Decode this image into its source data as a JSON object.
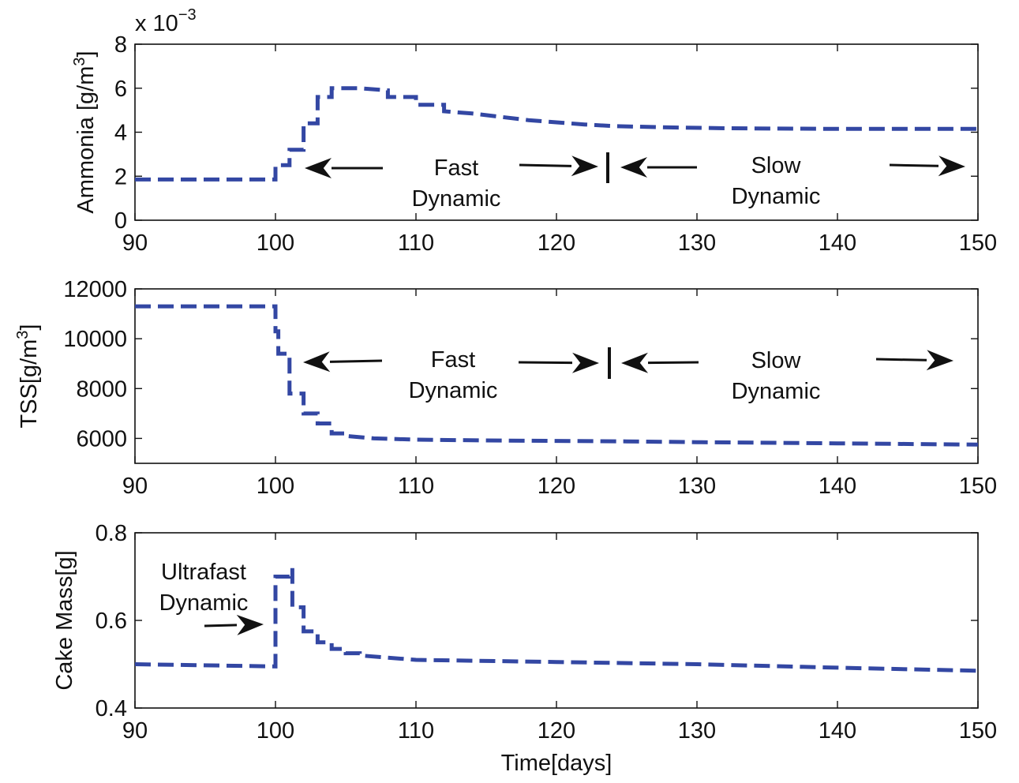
{
  "colors": {
    "series": "#3347a3",
    "axes": "#111111",
    "annotation": "#111111"
  },
  "chart_data": [
    {
      "type": "line",
      "title": "",
      "xlabel": "",
      "ylabel": "Ammonia [g/m^3]",
      "ylabel_parts": {
        "base": "Ammonia [g/m",
        "sup": "3",
        "close": "]"
      },
      "exponent_label": {
        "base": "x 10",
        "sup": "−3"
      },
      "xlim": [
        90,
        150
      ],
      "ylim": [
        0,
        8
      ],
      "xticks": [
        90,
        100,
        110,
        120,
        130,
        140,
        150
      ],
      "yticks": [
        0,
        2,
        4,
        6,
        8
      ],
      "series": [
        {
          "style": "dashed",
          "x": [
            90,
            100,
            100,
            101,
            101,
            102,
            102,
            103,
            103,
            104,
            104,
            106,
            108,
            108,
            110,
            110,
            112,
            112,
            114,
            116,
            118,
            120,
            122,
            124,
            128,
            132,
            140,
            150
          ],
          "y": [
            1.85,
            1.85,
            2.5,
            2.5,
            3.2,
            3.2,
            4.4,
            4.4,
            5.6,
            5.6,
            6.0,
            6.0,
            5.9,
            5.6,
            5.6,
            5.25,
            5.25,
            4.95,
            4.85,
            4.7,
            4.55,
            4.45,
            4.35,
            4.28,
            4.22,
            4.18,
            4.15,
            4.15
          ]
        }
      ],
      "annotations": [
        {
          "lines": [
            "Fast",
            "Dynamic"
          ]
        },
        {
          "lines": [
            "Slow",
            "Dynamic"
          ]
        }
      ]
    },
    {
      "type": "line",
      "title": "",
      "xlabel": "",
      "ylabel": "TSS[g/m^3]",
      "ylabel_parts": {
        "base": "TSS[g/m",
        "sup": "3",
        "close": "]"
      },
      "xlim": [
        90,
        150
      ],
      "ylim": [
        5000,
        12000
      ],
      "xticks": [
        90,
        100,
        110,
        120,
        130,
        140,
        150
      ],
      "yticks": [
        6000,
        8000,
        10000,
        12000
      ],
      "series": [
        {
          "style": "dashed",
          "x": [
            90,
            100,
            100,
            100.2,
            100.2,
            101,
            101,
            102,
            102,
            103,
            103,
            104,
            104,
            105,
            105,
            107,
            110,
            115,
            120,
            125,
            130,
            140,
            150
          ],
          "y": [
            11300,
            11300,
            10300,
            10300,
            9400,
            9400,
            7800,
            7800,
            7000,
            7000,
            6600,
            6600,
            6200,
            6200,
            6100,
            6000,
            5950,
            5920,
            5900,
            5880,
            5850,
            5800,
            5750
          ]
        }
      ],
      "annotations": [
        {
          "lines": [
            "Fast",
            "Dynamic"
          ]
        },
        {
          "lines": [
            "Slow",
            "Dynamic"
          ]
        }
      ]
    },
    {
      "type": "line",
      "title": "",
      "xlabel": "Time[days]",
      "ylabel": "Cake Mass[g]",
      "xlim": [
        90,
        150
      ],
      "ylim": [
        0.4,
        0.8
      ],
      "xticks": [
        90,
        100,
        110,
        120,
        130,
        140,
        150
      ],
      "yticks": [
        0.4,
        0.6,
        0.8
      ],
      "series": [
        {
          "style": "dashed",
          "x": [
            90,
            100,
            100,
            101,
            101,
            101.2,
            101.2,
            102,
            102,
            103,
            103,
            104,
            104,
            105,
            105,
            106,
            106,
            110,
            120,
            130,
            140,
            150
          ],
          "y": [
            0.5,
            0.495,
            0.7,
            0.7,
            0.715,
            0.715,
            0.63,
            0.63,
            0.575,
            0.575,
            0.55,
            0.55,
            0.535,
            0.535,
            0.525,
            0.525,
            0.52,
            0.51,
            0.505,
            0.5,
            0.492,
            0.485
          ]
        }
      ],
      "annotations": [
        {
          "lines": [
            "Ultrafast",
            "Dynamic"
          ]
        }
      ]
    }
  ]
}
